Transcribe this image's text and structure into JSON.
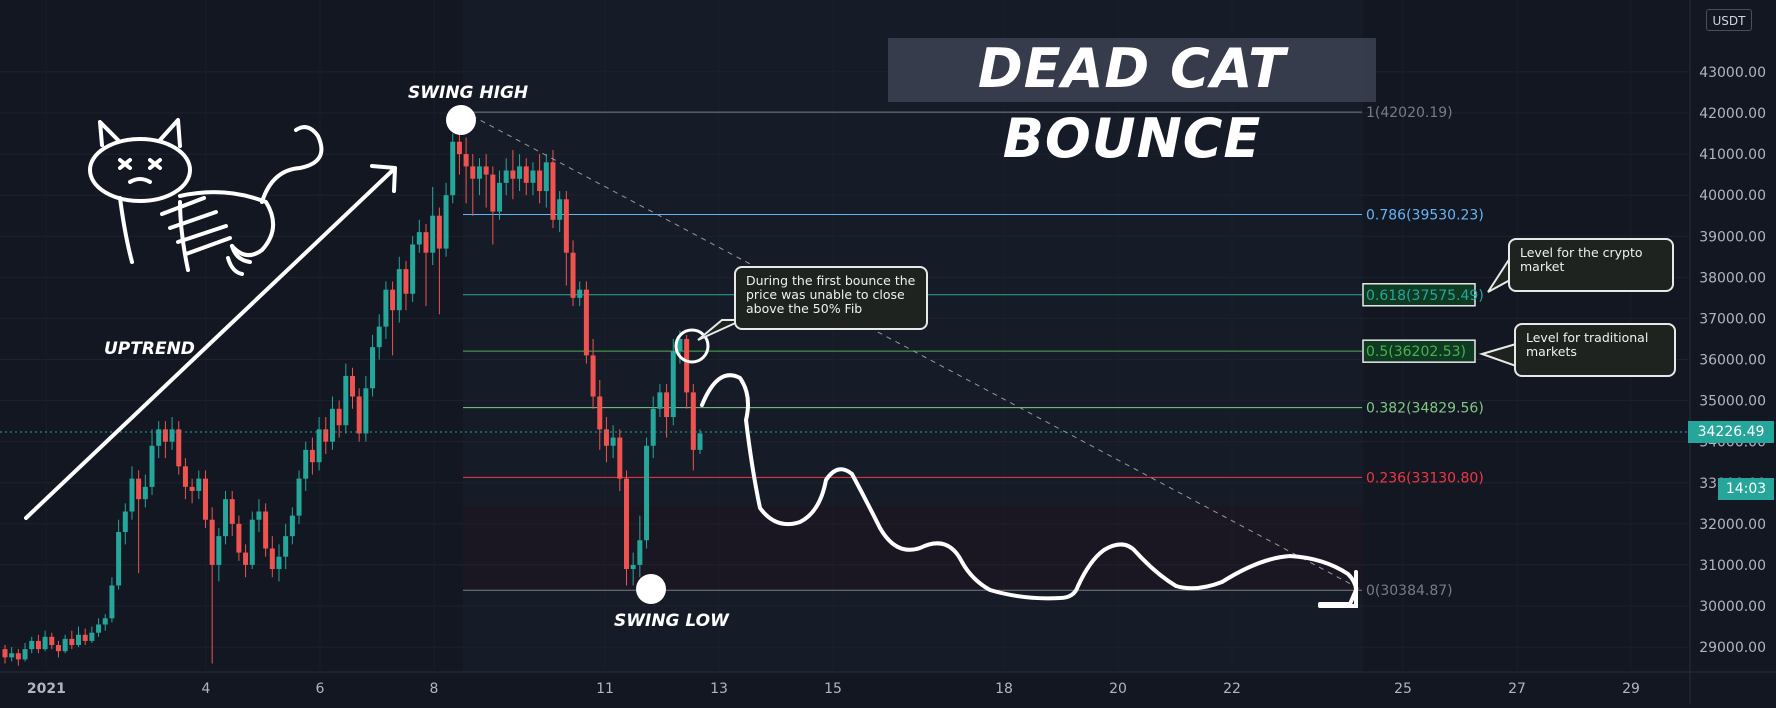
{
  "title": "DEAD CAT BOUNCE",
  "currency_button": "USDT",
  "current_price_label": "34226.49",
  "countdown_label": "14:03",
  "annotations": {
    "swing_high": "SWING HIGH",
    "swing_low": "SWING LOW",
    "uptrend": "UPTREND",
    "callout_bounce": "During the first bounce the price was unable to close above the 50% Fib",
    "callout_crypto": "Level for the crypto market",
    "callout_traditional": "Level for traditional markets"
  },
  "colors": {
    "background": "#131722",
    "up": "#26a69a",
    "down": "#ef5350",
    "fib_1": "#787b86",
    "fib_0786": "#64b5f6",
    "fib_0618": "#26a69a",
    "fib_05": "#4caf50",
    "fib_0382": "#81c784",
    "fib_0236": "#f23645",
    "fib_0": "#787b86"
  },
  "chart_data": {
    "type": "candlestick",
    "title": "DEAD CAT BOUNCE",
    "ylim": [
      28400,
      42900
    ],
    "y_ticks": [
      29000,
      30000,
      31000,
      32000,
      33000,
      34000,
      35000,
      36000,
      37000,
      38000,
      39000,
      40000,
      41000,
      42000,
      43000
    ],
    "y_tick_labels": [
      "29000.00",
      "30000.00",
      "31000.00",
      "32000.00",
      "33000.00",
      "34000.00",
      "35000.00",
      "36000.00",
      "37000.00",
      "38000.00",
      "39000.00",
      "40000.00",
      "41000.00",
      "42000.00",
      "43000.00"
    ],
    "x_ticks": [
      {
        "label": "2021",
        "day": 1.2
      },
      {
        "label": "4",
        "day": 4
      },
      {
        "label": "6",
        "day": 6
      },
      {
        "label": "8",
        "day": 8
      },
      {
        "label": "11",
        "day": 11
      },
      {
        "label": "13",
        "day": 13
      },
      {
        "label": "15",
        "day": 15
      },
      {
        "label": "18",
        "day": 18
      },
      {
        "label": "20",
        "day": 20
      },
      {
        "label": "22",
        "day": 22
      },
      {
        "label": "25",
        "day": 25
      },
      {
        "label": "27",
        "day": 27
      },
      {
        "label": "29",
        "day": 29
      }
    ],
    "fib_levels": [
      {
        "ratio": "1",
        "price": 42020.19,
        "label": "1(42020.19)"
      },
      {
        "ratio": "0.786",
        "price": 39530.23,
        "label": "0.786(39530.23)"
      },
      {
        "ratio": "0.618",
        "price": 37575.49,
        "label": "0.618(37575.49)"
      },
      {
        "ratio": "0.5",
        "price": 36202.53,
        "label": "0.5(36202.53)"
      },
      {
        "ratio": "0.382",
        "price": 34829.56,
        "label": "0.382(34829.56)"
      },
      {
        "ratio": "0.236",
        "price": 33130.8,
        "label": "0.236(33130.80)"
      },
      {
        "ratio": "0",
        "price": 30384.87,
        "label": "0(30384.87)"
      }
    ],
    "current_price": 34226.49,
    "candles": [
      [
        28950,
        28750,
        29050,
        28600
      ],
      [
        28750,
        28850,
        29000,
        28650
      ],
      [
        28850,
        28700,
        28950,
        28550
      ],
      [
        28700,
        28950,
        29100,
        28650
      ],
      [
        28950,
        29150,
        29250,
        28850
      ],
      [
        29150,
        28950,
        29300,
        28850
      ],
      [
        28950,
        29250,
        29400,
        28900
      ],
      [
        29250,
        29050,
        29350,
        28950
      ],
      [
        29050,
        28900,
        29150,
        28750
      ],
      [
        28900,
        29200,
        29300,
        28850
      ],
      [
        29200,
        29050,
        29400,
        28950
      ],
      [
        29050,
        29300,
        29500,
        29000
      ],
      [
        29300,
        29150,
        29450,
        29050
      ],
      [
        29150,
        29350,
        29500,
        29100
      ],
      [
        29350,
        29550,
        29700,
        29250
      ],
      [
        29550,
        29700,
        29800,
        29400
      ],
      [
        29700,
        30500,
        30700,
        29600
      ],
      [
        30500,
        31800,
        32100,
        30400
      ],
      [
        31800,
        32300,
        32500,
        31500
      ],
      [
        32300,
        33100,
        33400,
        32100
      ],
      [
        33100,
        32600,
        33300,
        30800
      ],
      [
        32600,
        32900,
        33200,
        32400
      ],
      [
        32900,
        33900,
        34300,
        32700
      ],
      [
        33900,
        34300,
        34500,
        33600
      ],
      [
        34300,
        34000,
        34500,
        33600
      ],
      [
        34000,
        34300,
        34600,
        33800
      ],
      [
        34300,
        33400,
        34500,
        33200
      ],
      [
        33400,
        32900,
        33600,
        32600
      ],
      [
        32900,
        32800,
        33100,
        32500
      ],
      [
        32800,
        33100,
        33300,
        32600
      ],
      [
        33100,
        32100,
        33300,
        31900
      ],
      [
        32100,
        31000,
        32400,
        28600
      ],
      [
        31000,
        31700,
        31900,
        30600
      ],
      [
        31700,
        32600,
        32800,
        31500
      ],
      [
        32600,
        32000,
        32800,
        31700
      ],
      [
        32000,
        31300,
        32200,
        31100
      ],
      [
        31300,
        31000,
        31500,
        30700
      ],
      [
        31000,
        32100,
        32300,
        30900
      ],
      [
        32100,
        32300,
        32600,
        31800
      ],
      [
        32300,
        31400,
        32500,
        31200
      ],
      [
        31400,
        30900,
        31700,
        30700
      ],
      [
        30900,
        31200,
        31500,
        30600
      ],
      [
        31200,
        31700,
        32000,
        30900
      ],
      [
        31700,
        32200,
        32400,
        31500
      ],
      [
        32200,
        33100,
        33300,
        32000
      ],
      [
        33100,
        33800,
        34000,
        32800
      ],
      [
        33800,
        33500,
        34100,
        33200
      ],
      [
        33500,
        34300,
        34600,
        33300
      ],
      [
        34300,
        34000,
        34600,
        33700
      ],
      [
        34000,
        34800,
        35100,
        33800
      ],
      [
        34800,
        34400,
        35000,
        34100
      ],
      [
        34400,
        35600,
        35900,
        34200
      ],
      [
        35600,
        35100,
        35800,
        34800
      ],
      [
        35100,
        34200,
        35300,
        34000
      ],
      [
        34200,
        35300,
        35600,
        34000
      ],
      [
        35300,
        36300,
        36600,
        35100
      ],
      [
        36300,
        36800,
        37100,
        36000
      ],
      [
        36800,
        37700,
        37900,
        36500
      ],
      [
        37700,
        37200,
        37900,
        36100
      ],
      [
        37200,
        38200,
        38500,
        36900
      ],
      [
        38200,
        37600,
        38400,
        37200
      ],
      [
        37600,
        38800,
        39000,
        37400
      ],
      [
        38800,
        39100,
        39400,
        38600
      ],
      [
        39100,
        38600,
        39300,
        37300
      ],
      [
        38600,
        39500,
        40200,
        38300
      ],
      [
        39500,
        38700,
        39700,
        37100
      ],
      [
        38700,
        40000,
        40300,
        38500
      ],
      [
        40000,
        41300,
        41500,
        39800
      ],
      [
        41300,
        41000,
        42000,
        40500
      ],
      [
        41000,
        40700,
        41400,
        39800
      ],
      [
        40700,
        40400,
        41000,
        39500
      ],
      [
        40400,
        40700,
        40900,
        40000
      ],
      [
        40700,
        40500,
        41000,
        39700
      ],
      [
        40500,
        39600,
        40700,
        38800
      ],
      [
        39600,
        40300,
        40600,
        39400
      ],
      [
        40300,
        40600,
        40900,
        40000
      ],
      [
        40600,
        40400,
        41100,
        39900
      ],
      [
        40400,
        40700,
        41000,
        40100
      ],
      [
        40700,
        40300,
        40900,
        40000
      ],
      [
        40300,
        40600,
        40800,
        40000
      ],
      [
        40600,
        40100,
        41000,
        39800
      ],
      [
        40100,
        40800,
        41000,
        39700
      ],
      [
        40800,
        39400,
        41100,
        39200
      ],
      [
        39400,
        39900,
        40100,
        39100
      ],
      [
        39900,
        38600,
        40100,
        37800
      ],
      [
        38600,
        37500,
        38900,
        37300
      ],
      [
        37500,
        37700,
        37900,
        37300
      ],
      [
        37700,
        36100,
        37900,
        35900
      ],
      [
        36100,
        35100,
        36500,
        34800
      ],
      [
        35100,
        34300,
        35500,
        33800
      ],
      [
        34300,
        33900,
        34600,
        33500
      ],
      [
        33900,
        34100,
        34400,
        33600
      ],
      [
        34100,
        33100,
        34300,
        32800
      ],
      [
        33100,
        30900,
        33300,
        30500
      ],
      [
        30900,
        31000,
        31300,
        30500
      ],
      [
        31000,
        31600,
        32200,
        30700
      ],
      [
        31600,
        33900,
        34100,
        31400
      ],
      [
        33900,
        34800,
        35100,
        33600
      ],
      [
        34800,
        35200,
        35400,
        34600
      ],
      [
        35200,
        34600,
        35400,
        34100
      ],
      [
        34600,
        36200,
        36500,
        34400
      ],
      [
        36200,
        36500,
        36700,
        35900
      ],
      [
        36500,
        35200,
        36600,
        34800
      ],
      [
        35200,
        33800,
        35400,
        33300
      ],
      [
        33800,
        34200,
        34300,
        33700
      ]
    ],
    "projection_path": "hand-drawn forecast line showing lower highs after the bounce"
  }
}
